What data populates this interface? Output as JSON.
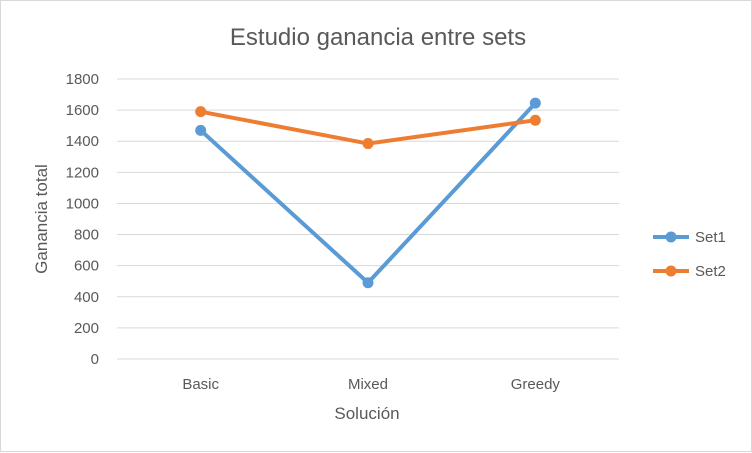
{
  "chart_data": {
    "type": "line",
    "title": "Estudio ganancia entre sets",
    "xlabel": "Solución",
    "ylabel": "Ganancia total",
    "categories": [
      "Basic",
      "Mixed",
      "Greedy"
    ],
    "ylim": [
      0,
      1800
    ],
    "yticks": [
      0,
      200,
      400,
      600,
      800,
      1000,
      1200,
      1400,
      1600,
      1800
    ],
    "grid": true,
    "legend_position": "right",
    "series": [
      {
        "name": "Set1",
        "color": "#5b9bd5",
        "values": [
          1470,
          490,
          1645
        ]
      },
      {
        "name": "Set2",
        "color": "#ed7d31",
        "values": [
          1590,
          1385,
          1535
        ]
      }
    ]
  }
}
